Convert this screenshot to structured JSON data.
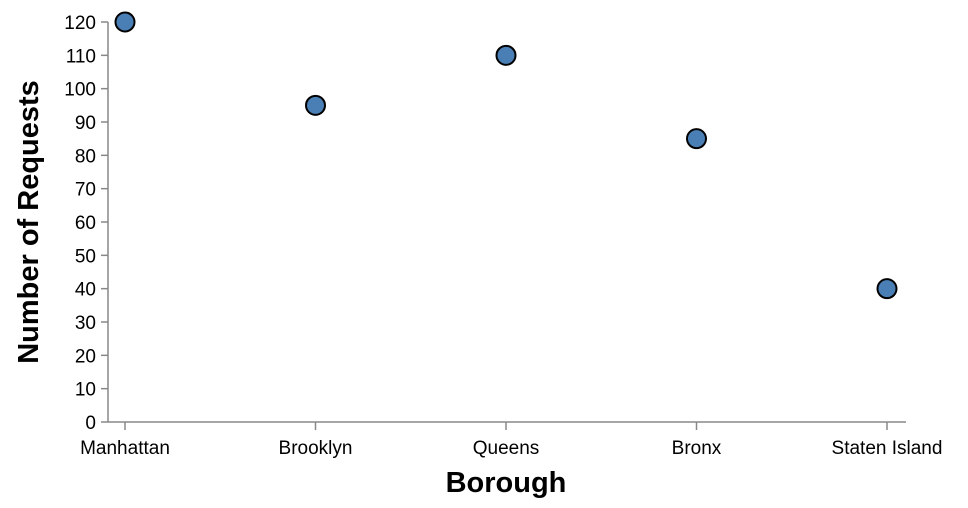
{
  "chart_data": {
    "type": "scatter",
    "categories": [
      "Manhattan",
      "Brooklyn",
      "Queens",
      "Bronx",
      "Staten Island"
    ],
    "values": [
      120,
      95,
      110,
      85,
      40
    ],
    "xlabel": "Borough",
    "ylabel": "Number of Requests",
    "ylim": [
      0,
      120
    ],
    "yticks": [
      0,
      10,
      20,
      30,
      40,
      50,
      60,
      70,
      80,
      90,
      100,
      110,
      120
    ],
    "grid": false,
    "point_color": "#4a7fb5"
  }
}
